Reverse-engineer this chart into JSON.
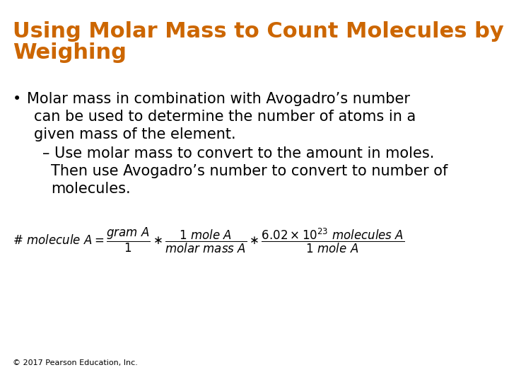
{
  "title_line1": "Using Molar Mass to Count Molecules by",
  "title_line2": "Weighing",
  "title_color": "#CC6600",
  "title_fontsize": 22,
  "background_color": "#FFFFFF",
  "bullet_fontsize": 15,
  "sub_bullet_fontsize": 15,
  "copyright_text": "© 2017 Pearson Education, Inc.",
  "copyright_fontsize": 8
}
